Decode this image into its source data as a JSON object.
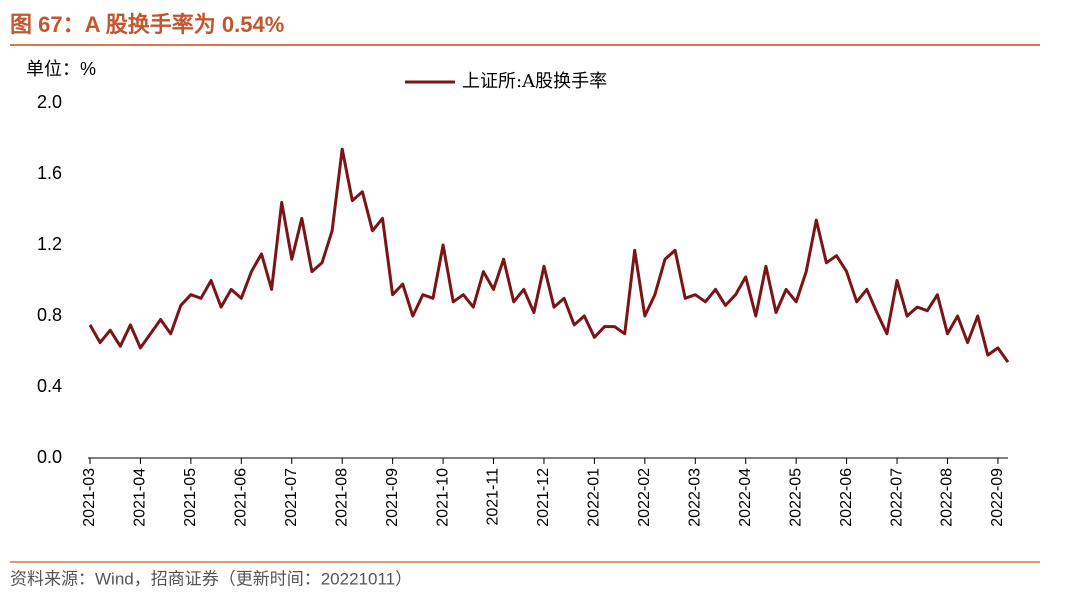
{
  "chart_data": {
    "type": "line",
    "title": "图 67：A 股换手率为 0.54%",
    "unit_label": "单位：%",
    "source": "资料来源：Wind，招商证券（更新时间：20221011）",
    "categories": [
      "2021-03",
      null,
      null,
      null,
      null,
      "2021-04",
      null,
      null,
      null,
      null,
      "2021-05",
      null,
      null,
      null,
      null,
      "2021-06",
      null,
      null,
      null,
      null,
      "2021-07",
      null,
      null,
      null,
      null,
      "2021-08",
      null,
      null,
      null,
      null,
      "2021-09",
      null,
      null,
      null,
      null,
      "2021-10",
      null,
      null,
      null,
      null,
      "2021-11",
      null,
      null,
      null,
      null,
      "2021-12",
      null,
      null,
      null,
      null,
      "2022-01",
      null,
      null,
      null,
      null,
      "2022-02",
      null,
      null,
      null,
      null,
      "2022-03",
      null,
      null,
      null,
      null,
      "2022-04",
      null,
      null,
      null,
      null,
      "2022-05",
      null,
      null,
      null,
      null,
      "2022-06",
      null,
      null,
      null,
      null,
      "2022-07",
      null,
      null,
      null,
      null,
      "2022-08",
      null,
      null,
      null,
      null,
      "2022-09",
      null
    ],
    "series": [
      {
        "name": "上证所:A股换手率",
        "color": "#7b1416",
        "values": [
          0.75,
          0.65,
          0.72,
          0.63,
          0.75,
          0.62,
          0.7,
          0.78,
          0.7,
          0.86,
          0.92,
          0.9,
          1.0,
          0.85,
          0.95,
          0.9,
          1.05,
          1.15,
          0.95,
          1.44,
          1.12,
          1.35,
          1.05,
          1.1,
          1.28,
          1.74,
          1.45,
          1.5,
          1.28,
          1.35,
          0.92,
          0.98,
          0.8,
          0.92,
          0.9,
          1.2,
          0.88,
          0.92,
          0.85,
          1.05,
          0.95,
          1.12,
          0.88,
          0.95,
          0.82,
          1.08,
          0.85,
          0.9,
          0.75,
          0.8,
          0.68,
          0.74,
          0.74,
          0.7,
          1.17,
          0.8,
          0.92,
          1.12,
          1.17,
          0.9,
          0.92,
          0.88,
          0.95,
          0.86,
          0.92,
          1.02,
          0.8,
          1.08,
          0.82,
          0.95,
          0.88,
          1.05,
          1.34,
          1.1,
          1.14,
          1.05,
          0.88,
          0.95,
          0.82,
          0.7,
          1.0,
          0.8,
          0.85,
          0.83,
          0.92,
          0.7,
          0.8,
          0.65,
          0.8,
          0.58,
          0.62,
          0.54
        ]
      }
    ],
    "ylim": [
      0,
      2
    ],
    "yticks": [
      {
        "value": 0,
        "label": "0.0"
      },
      0.4,
      0.8,
      1.2,
      {
        "value": 1.6,
        "label": "1.6"
      },
      {
        "value": 2,
        "label": "2.0"
      }
    ],
    "grid": false,
    "legend": "top"
  }
}
